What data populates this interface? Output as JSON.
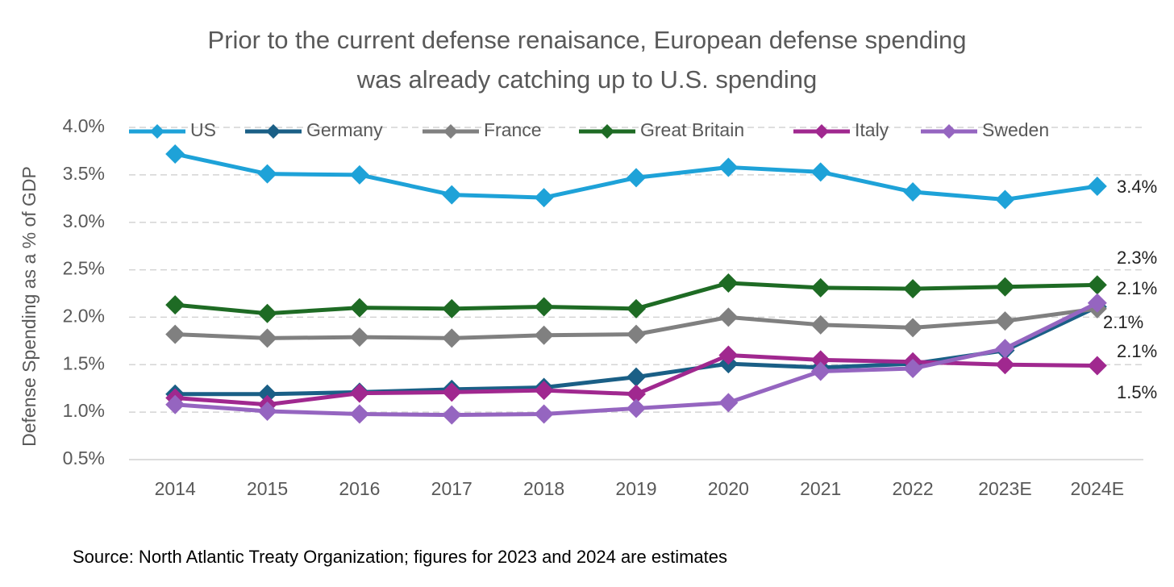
{
  "chart_data": {
    "type": "line",
    "title": [
      "Prior to the current defense renaisance, European defense spending",
      "was already catching up to U.S. spending"
    ],
    "y_axis_label": "Defense Spending as a % of GDP",
    "source": "Source: North Atlantic Treaty Organization; figures for 2023 and 2024 are estimates",
    "categories": [
      "2014",
      "2015",
      "2016",
      "2017",
      "2018",
      "2019",
      "2020",
      "2021",
      "2022",
      "2023E",
      "2024E"
    ],
    "ylim": [
      0.5,
      4.0
    ],
    "yticks": [
      {
        "value": 0.5,
        "label": "0.5%"
      },
      {
        "value": 1.0,
        "label": "1.0%"
      },
      {
        "value": 1.5,
        "label": "1.5%"
      },
      {
        "value": 2.0,
        "label": "2.0%"
      },
      {
        "value": 2.5,
        "label": "2.5%"
      },
      {
        "value": 3.0,
        "label": "3.0%"
      },
      {
        "value": 3.5,
        "label": "3.5%"
      },
      {
        "value": 4.0,
        "label": "4.0%"
      }
    ],
    "grid": true,
    "legend": "top",
    "series": [
      {
        "name": "US",
        "color": "#1ea2d8",
        "values": [
          3.72,
          3.51,
          3.5,
          3.29,
          3.26,
          3.47,
          3.58,
          3.53,
          3.32,
          3.24,
          3.38
        ],
        "value_labels": [
          null,
          null,
          null,
          null,
          null,
          null,
          null,
          null,
          null,
          null,
          "3.4%"
        ]
      },
      {
        "name": "Germany",
        "color": "#1a5f86",
        "values": [
          1.19,
          1.19,
          1.21,
          1.24,
          1.26,
          1.37,
          1.51,
          1.47,
          1.51,
          1.65,
          2.11
        ],
        "value_labels": [
          null,
          null,
          null,
          null,
          null,
          null,
          null,
          null,
          null,
          null,
          "2.1%"
        ]
      },
      {
        "name": "France",
        "color": "#808080",
        "values": [
          1.82,
          1.78,
          1.79,
          1.78,
          1.81,
          1.82,
          2.0,
          1.92,
          1.89,
          1.96,
          2.09
        ],
        "value_labels": [
          null,
          null,
          null,
          null,
          null,
          null,
          null,
          null,
          null,
          null,
          "2.1%"
        ]
      },
      {
        "name": "Great Britain",
        "color": "#1e6b24",
        "values": [
          2.13,
          2.04,
          2.1,
          2.09,
          2.11,
          2.09,
          2.36,
          2.31,
          2.3,
          2.32,
          2.34
        ],
        "value_labels": [
          null,
          null,
          null,
          null,
          null,
          null,
          null,
          null,
          null,
          null,
          "2.3%"
        ]
      },
      {
        "name": "Italy",
        "color": "#a0288f",
        "values": [
          1.15,
          1.08,
          1.2,
          1.21,
          1.23,
          1.19,
          1.6,
          1.55,
          1.53,
          1.5,
          1.49
        ],
        "value_labels": [
          null,
          null,
          null,
          null,
          null,
          null,
          null,
          null,
          null,
          null,
          "1.5%"
        ]
      },
      {
        "name": "Sweden",
        "color": "#9565c0",
        "values": [
          1.08,
          1.01,
          0.98,
          0.97,
          0.98,
          1.04,
          1.1,
          1.43,
          1.46,
          1.67,
          2.15
        ],
        "value_labels": [
          null,
          null,
          null,
          null,
          null,
          null,
          null,
          null,
          null,
          null,
          "2.1%"
        ]
      }
    ]
  }
}
